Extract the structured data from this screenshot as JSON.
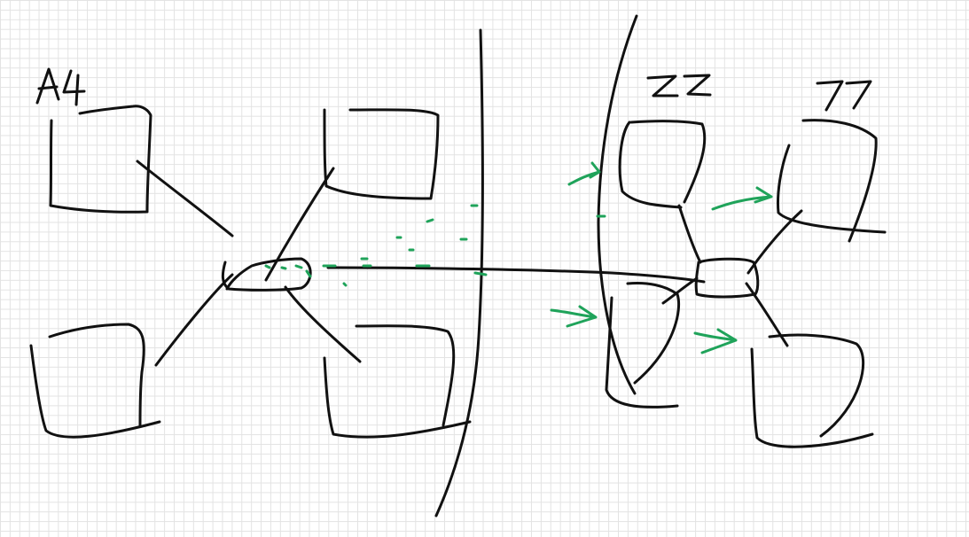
{
  "labels": {
    "left_group": "A4",
    "right_group_1": "ZZ",
    "right_group_2": "77"
  },
  "colors": {
    "ink": "#111111",
    "highlight": "#1fa35a",
    "grid": "#e3e3e3"
  }
}
